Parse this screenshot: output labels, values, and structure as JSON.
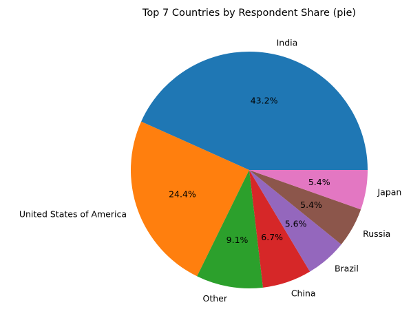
{
  "chart_data": {
    "type": "pie",
    "title": "Top 7 Countries by Respondent Share (pie)",
    "slices": [
      {
        "label": "India",
        "value": 43.2,
        "pct_label": "43.2%",
        "color": "#1f77b4"
      },
      {
        "label": "United States of America",
        "value": 24.4,
        "pct_label": "24.4%",
        "color": "#ff7f0e"
      },
      {
        "label": "Other",
        "value": 9.1,
        "pct_label": "9.1%",
        "color": "#2ca02c"
      },
      {
        "label": "China",
        "value": 6.7,
        "pct_label": "6.7%",
        "color": "#d62728"
      },
      {
        "label": "Brazil",
        "value": 5.6,
        "pct_label": "5.6%",
        "color": "#9467bd"
      },
      {
        "label": "Russia",
        "value": 5.4,
        "pct_label": "5.4%",
        "color": "#8c564b"
      },
      {
        "label": "Japan",
        "value": 5.4,
        "pct_label": "5.4%",
        "color": "#e377c2"
      }
    ],
    "start_angle_deg": 0,
    "direction": "counterclockwise"
  }
}
